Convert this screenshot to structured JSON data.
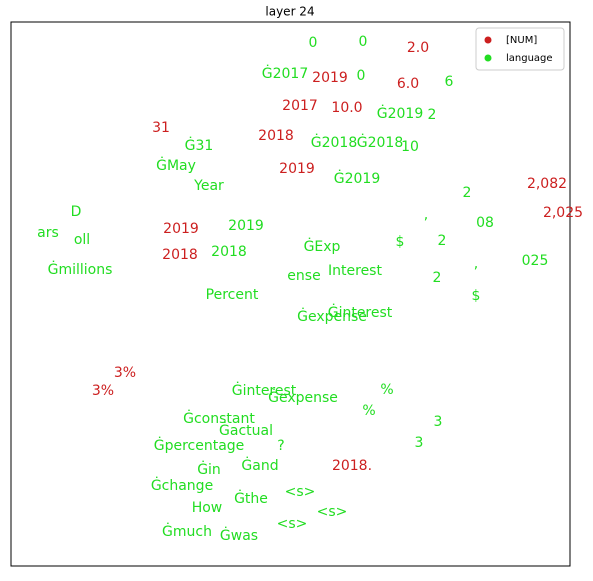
{
  "chart_data": {
    "type": "scatter",
    "title": "layer 24",
    "xlim": [
      0,
      559
    ],
    "ylim": [
      0,
      544
    ],
    "legend": "upper right",
    "series": [
      {
        "name": "[NUM]",
        "color": "#cc1f1f",
        "labels": [
          "2.0",
          "2019",
          "6.0",
          "2017",
          "10.0",
          "31",
          "2018",
          "2019",
          "2,082",
          "2,025",
          "2019",
          "2018",
          "3%",
          "3%",
          "2018."
        ],
        "x": [
          407,
          319,
          397,
          289,
          336,
          150,
          265,
          286,
          536,
          552,
          170,
          169,
          114,
          92,
          341
        ],
        "values": [
          518,
          488,
          482,
          460,
          458,
          438,
          430,
          397,
          382,
          353,
          337,
          311,
          193,
          175,
          100
        ]
      },
      {
        "name": "language",
        "color": "#22dd22",
        "labels": [
          "0",
          "0",
          "Ġ2017",
          "0",
          "6",
          "Ġ2019",
          "2",
          "Ġ31",
          "Ġ2018",
          "Ġ2018",
          "10",
          "ĠMay",
          "Year",
          "Ġ2019",
          "2",
          "D",
          ",",
          "08",
          "ars",
          "oll",
          "2019",
          "2018",
          "ĠExp",
          "$",
          "2",
          ",",
          "025",
          "Ġmillions",
          "ense",
          "Interest",
          "2",
          "Percent",
          "$",
          "Ġexpense",
          "Ġinterest",
          "Ġinterest",
          "%",
          "Ġexpense",
          "%",
          "Ġconstant",
          "3",
          "Ġactual",
          "Ġpercentage",
          "?",
          "3",
          "Ġin",
          "Ġand",
          "Ġchange",
          "<s>",
          "How",
          "Ġthe",
          "<s>",
          "Ġmuch",
          "Ġwas",
          "<s>"
        ],
        "x": [
          302,
          352,
          274,
          350,
          438,
          389,
          421,
          188,
          323,
          369,
          399,
          165,
          198,
          346,
          456,
          65,
          415,
          474,
          37,
          71,
          235,
          218,
          311,
          389,
          431,
          465,
          524,
          69,
          293,
          344,
          426,
          221,
          465,
          321,
          349,
          253,
          376,
          292,
          358,
          208,
          427,
          235,
          188,
          270,
          408,
          198,
          249,
          171,
          289,
          196,
          240,
          321,
          176,
          228,
          281
        ],
        "values": [
          523,
          524,
          492,
          490,
          484,
          452,
          451,
          420,
          423,
          423,
          419,
          400,
          380,
          387,
          373,
          354,
          351,
          343,
          333,
          326,
          340,
          314,
          319,
          324,
          325,
          302,
          305,
          296,
          290,
          295,
          288,
          271,
          270,
          249,
          253,
          175,
          176,
          168,
          155,
          147,
          144,
          135,
          120,
          120,
          123,
          96,
          100,
          80,
          74,
          58,
          67,
          54,
          34,
          30,
          42
        ]
      }
    ]
  }
}
